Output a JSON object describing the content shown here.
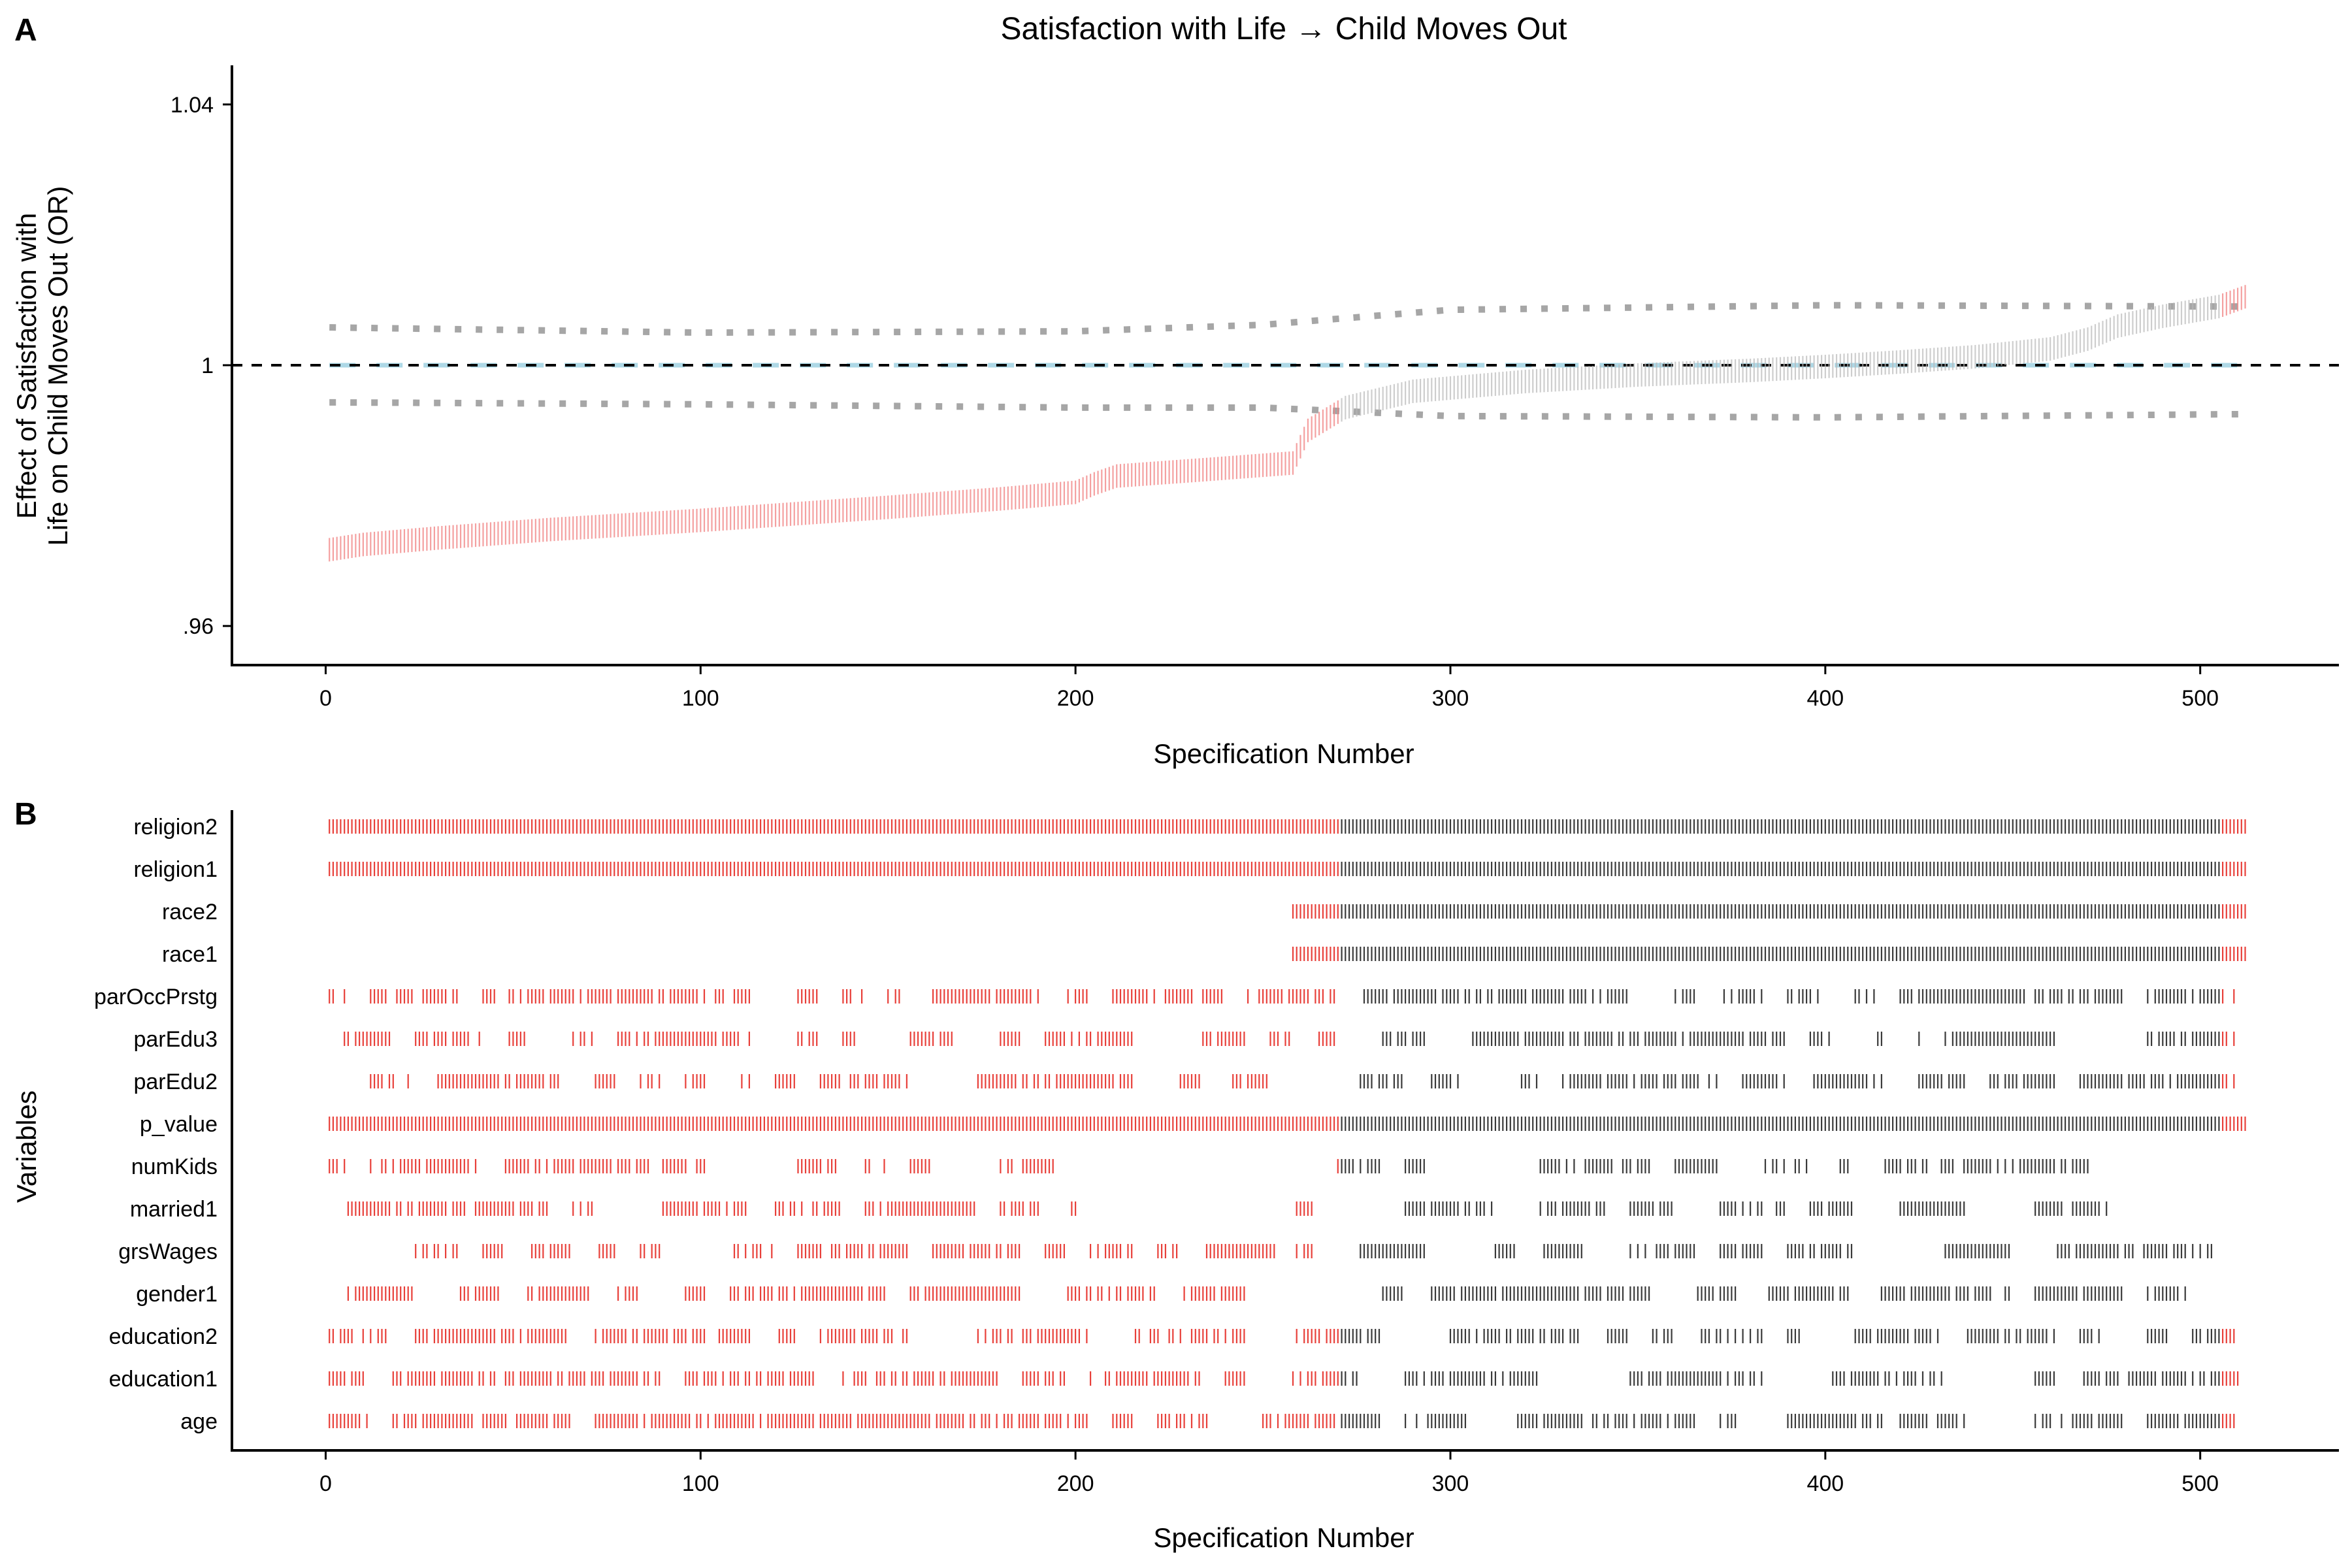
{
  "chart_data": [
    {
      "panel": "A",
      "type": "scatter",
      "title": "Satisfaction with Life → Child Moves Out",
      "xlabel": "Specification Number",
      "ylabel": [
        "Effect of Satisfaction with",
        "Life on Child Moves Out (OR)"
      ],
      "xlim": [
        -25,
        537
      ],
      "ylim": [
        0.954,
        1.046
      ],
      "x_ticks": [
        0,
        100,
        200,
        300,
        400,
        500
      ],
      "y_ticks": [
        0.96,
        1,
        1.04
      ],
      "y_tick_labels": [
        ".96",
        "1",
        "1.04"
      ],
      "n_specifications": 512,
      "grid": false,
      "legend": "none",
      "reference_line": {
        "y": 1,
        "style": "dashed"
      },
      "median_line": {
        "y": 1,
        "color": "#add8e6",
        "style": "dashed"
      },
      "series": [
        {
          "role": "estimates",
          "x": [
            1,
            10,
            30,
            60,
            100,
            150,
            180,
            200,
            205,
            211,
            235,
            258,
            262,
            272,
            290,
            320,
            350,
            380,
            400,
            420,
            440,
            460,
            470,
            478,
            490,
            505,
            512
          ],
          "y": [
            0.9717,
            0.9725,
            0.9735,
            0.9748,
            0.9762,
            0.9782,
            0.9795,
            0.9805,
            0.9818,
            0.983,
            0.984,
            0.985,
            0.99,
            0.9935,
            0.996,
            0.9975,
            0.9985,
            0.9992,
            0.9998,
            1.0005,
            1.0013,
            1.0025,
            1.004,
            1.006,
            1.0075,
            1.009,
            1.0105
          ]
        },
        {
          "role": "ci_upper",
          "x": [
            1,
            100,
            200,
            250,
            300,
            400,
            512
          ],
          "y": [
            1.0058,
            1.005,
            1.0052,
            1.0062,
            1.0085,
            1.0092,
            1.009
          ]
        },
        {
          "role": "ci_lower",
          "x": [
            1,
            100,
            200,
            250,
            300,
            400,
            512
          ],
          "y": [
            0.9943,
            0.994,
            0.9935,
            0.9935,
            0.9922,
            0.992,
            0.9925
          ]
        }
      ],
      "colors": {
        "significant": "#f08080",
        "nonsignificant": "#b8b8b8",
        "ci": "#a6a6a6",
        "median": "#add8e6"
      }
    },
    {
      "panel": "B",
      "type": "scatter",
      "xlabel": "Specification Number",
      "ylabel": "Variables",
      "xlim": [
        -25,
        537
      ],
      "x_ticks": [
        0,
        100,
        200,
        300,
        400,
        500
      ],
      "categories": [
        "religion2",
        "religion1",
        "race2",
        "race1",
        "parOccPrstg",
        "parEdu3",
        "parEdu2",
        "p_value",
        "numKids",
        "married1",
        "grsWages",
        "gender1",
        "education2",
        "education1",
        "age"
      ],
      "colors": {
        "significant": "#e8403a",
        "nonsignificant": "#3a3a3a"
      },
      "variable_inclusion_ranges": {
        "religion2": [
          [
            1,
            512
          ]
        ],
        "religion1": [
          [
            1,
            512
          ]
        ],
        "race2": [
          [
            258,
            512
          ]
        ],
        "race1": [
          [
            258,
            512
          ]
        ],
        "parOccPrstg": [
          [
            1,
            257
          ],
          [
            258,
            512
          ]
        ],
        "parEdu3": [
          [
            5,
            257
          ],
          [
            265,
            415
          ],
          [
            425,
            512
          ]
        ],
        "parEdu2": [
          [
            5,
            257
          ],
          [
            265,
            415
          ],
          [
            425,
            512
          ]
        ],
        "p_value": [
          [
            1,
            512
          ]
        ],
        "numKids": [
          [
            1,
            195
          ],
          [
            258,
            470
          ]
        ],
        "married1": [
          [
            1,
            200
          ],
          [
            258,
            475
          ]
        ],
        "grsWages": [
          [
            1,
            253
          ],
          [
            258,
            505
          ]
        ],
        "gender1": [
          [
            1,
            512
          ]
        ],
        "education2": [
          [
            1,
            245
          ],
          [
            258,
            510
          ]
        ],
        "education1": [
          [
            1,
            245
          ],
          [
            258,
            510
          ]
        ],
        "age": [
          [
            1,
            235
          ],
          [
            250,
            512
          ]
        ]
      }
    }
  ]
}
